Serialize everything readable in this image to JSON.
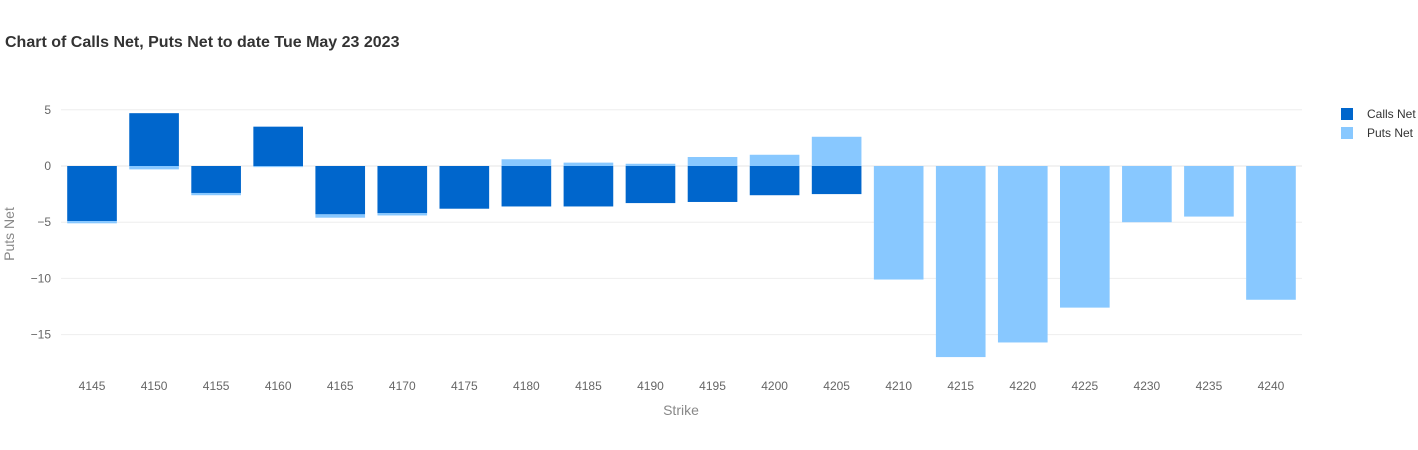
{
  "chart_data": {
    "type": "bar",
    "title": "Chart of Calls Net, Puts Net to date Tue May 23 2023",
    "xlabel": "Strike",
    "ylabel": "Puts Net",
    "categories": [
      "4145",
      "4150",
      "4155",
      "4160",
      "4165",
      "4170",
      "4175",
      "4180",
      "4185",
      "4190",
      "4195",
      "4200",
      "4205",
      "4210",
      "4215",
      "4220",
      "4225",
      "4230",
      "4235",
      "4240"
    ],
    "ylim": [
      -18.5,
      7
    ],
    "yticks": [
      5,
      0,
      -5,
      -10,
      -15
    ],
    "ytick_labels": [
      "5",
      "0",
      "−5",
      "−10",
      "−15"
    ],
    "grid": true,
    "legend_position": "top-right",
    "series": [
      {
        "name": "Calls Net",
        "color": "#0066cc",
        "values": [
          -4.9,
          4.7,
          -2.4,
          3.5,
          -4.3,
          -4.2,
          -3.8,
          -3.6,
          -3.6,
          -3.3,
          -3.2,
          -2.6,
          -2.5,
          0,
          0,
          0,
          0,
          0,
          0,
          0
        ]
      },
      {
        "name": "Puts Net",
        "color": "#88c8ff",
        "values": [
          -0.2,
          -0.3,
          -0.2,
          -0.1,
          -0.3,
          -0.2,
          0,
          0.6,
          0.3,
          0.2,
          0.8,
          1.0,
          2.6,
          -10.1,
          -17.0,
          -15.7,
          -12.6,
          -5.0,
          -4.5,
          -11.9
        ]
      }
    ]
  }
}
